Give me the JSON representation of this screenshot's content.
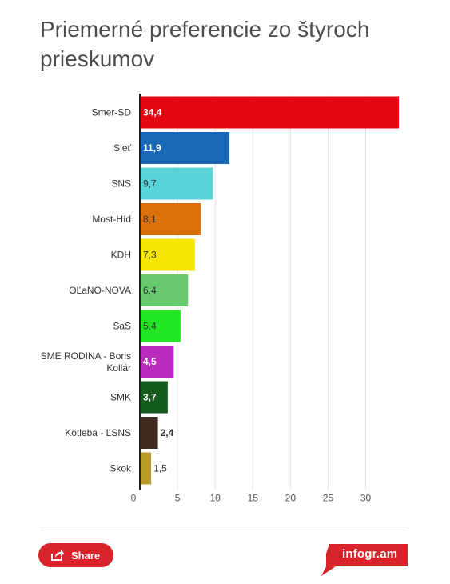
{
  "title": "Priemerné preferencie zo štyroch prieskumov",
  "chart_data": {
    "type": "bar",
    "orientation": "horizontal",
    "categories": [
      "Smer-SD",
      "Sieť",
      "SNS",
      "Most-Híd",
      "KDH",
      "OĽaNO-NOVA",
      "SaS",
      "SME RODINA - Boris Kollár",
      "SMK",
      "Kotleba - ĽSNS",
      "Skok"
    ],
    "values": [
      34.4,
      11.9,
      9.7,
      8.1,
      7.3,
      6.4,
      5.4,
      4.5,
      3.7,
      2.4,
      1.5
    ],
    "value_labels": [
      "34,4",
      "11,9",
      "9,7",
      "8,1",
      "7,3",
      "6,4",
      "5,4",
      "4,5",
      "3,7",
      "2,4",
      "1,5"
    ],
    "colors": [
      "#e30613",
      "#1a68b8",
      "#57d3d9",
      "#d9700b",
      "#f5e500",
      "#67c86e",
      "#22e623",
      "#b92bbd",
      "#145a1d",
      "#3e2a1f",
      "#b89a2a"
    ],
    "label_colors": [
      "#ffffff",
      "#ffffff",
      "#333333",
      "#333333",
      "#333333",
      "#333333",
      "#333333",
      "#ffffff",
      "#ffffff",
      "#ffffff",
      "#333333"
    ],
    "label_bold": [
      true,
      true,
      false,
      false,
      false,
      false,
      false,
      true,
      true,
      true,
      false
    ],
    "xticks": [
      0,
      5,
      10,
      15,
      20,
      25,
      30
    ],
    "xlim": [
      0,
      34.4
    ],
    "grid": true,
    "title": "Priemerné preferencie zo štyroch prieskumov",
    "xlabel": "",
    "ylabel": ""
  },
  "footer": {
    "share_label": "Share",
    "share_icon": "share-icon",
    "brand": "infogr.am",
    "accent": "#d8232a"
  }
}
